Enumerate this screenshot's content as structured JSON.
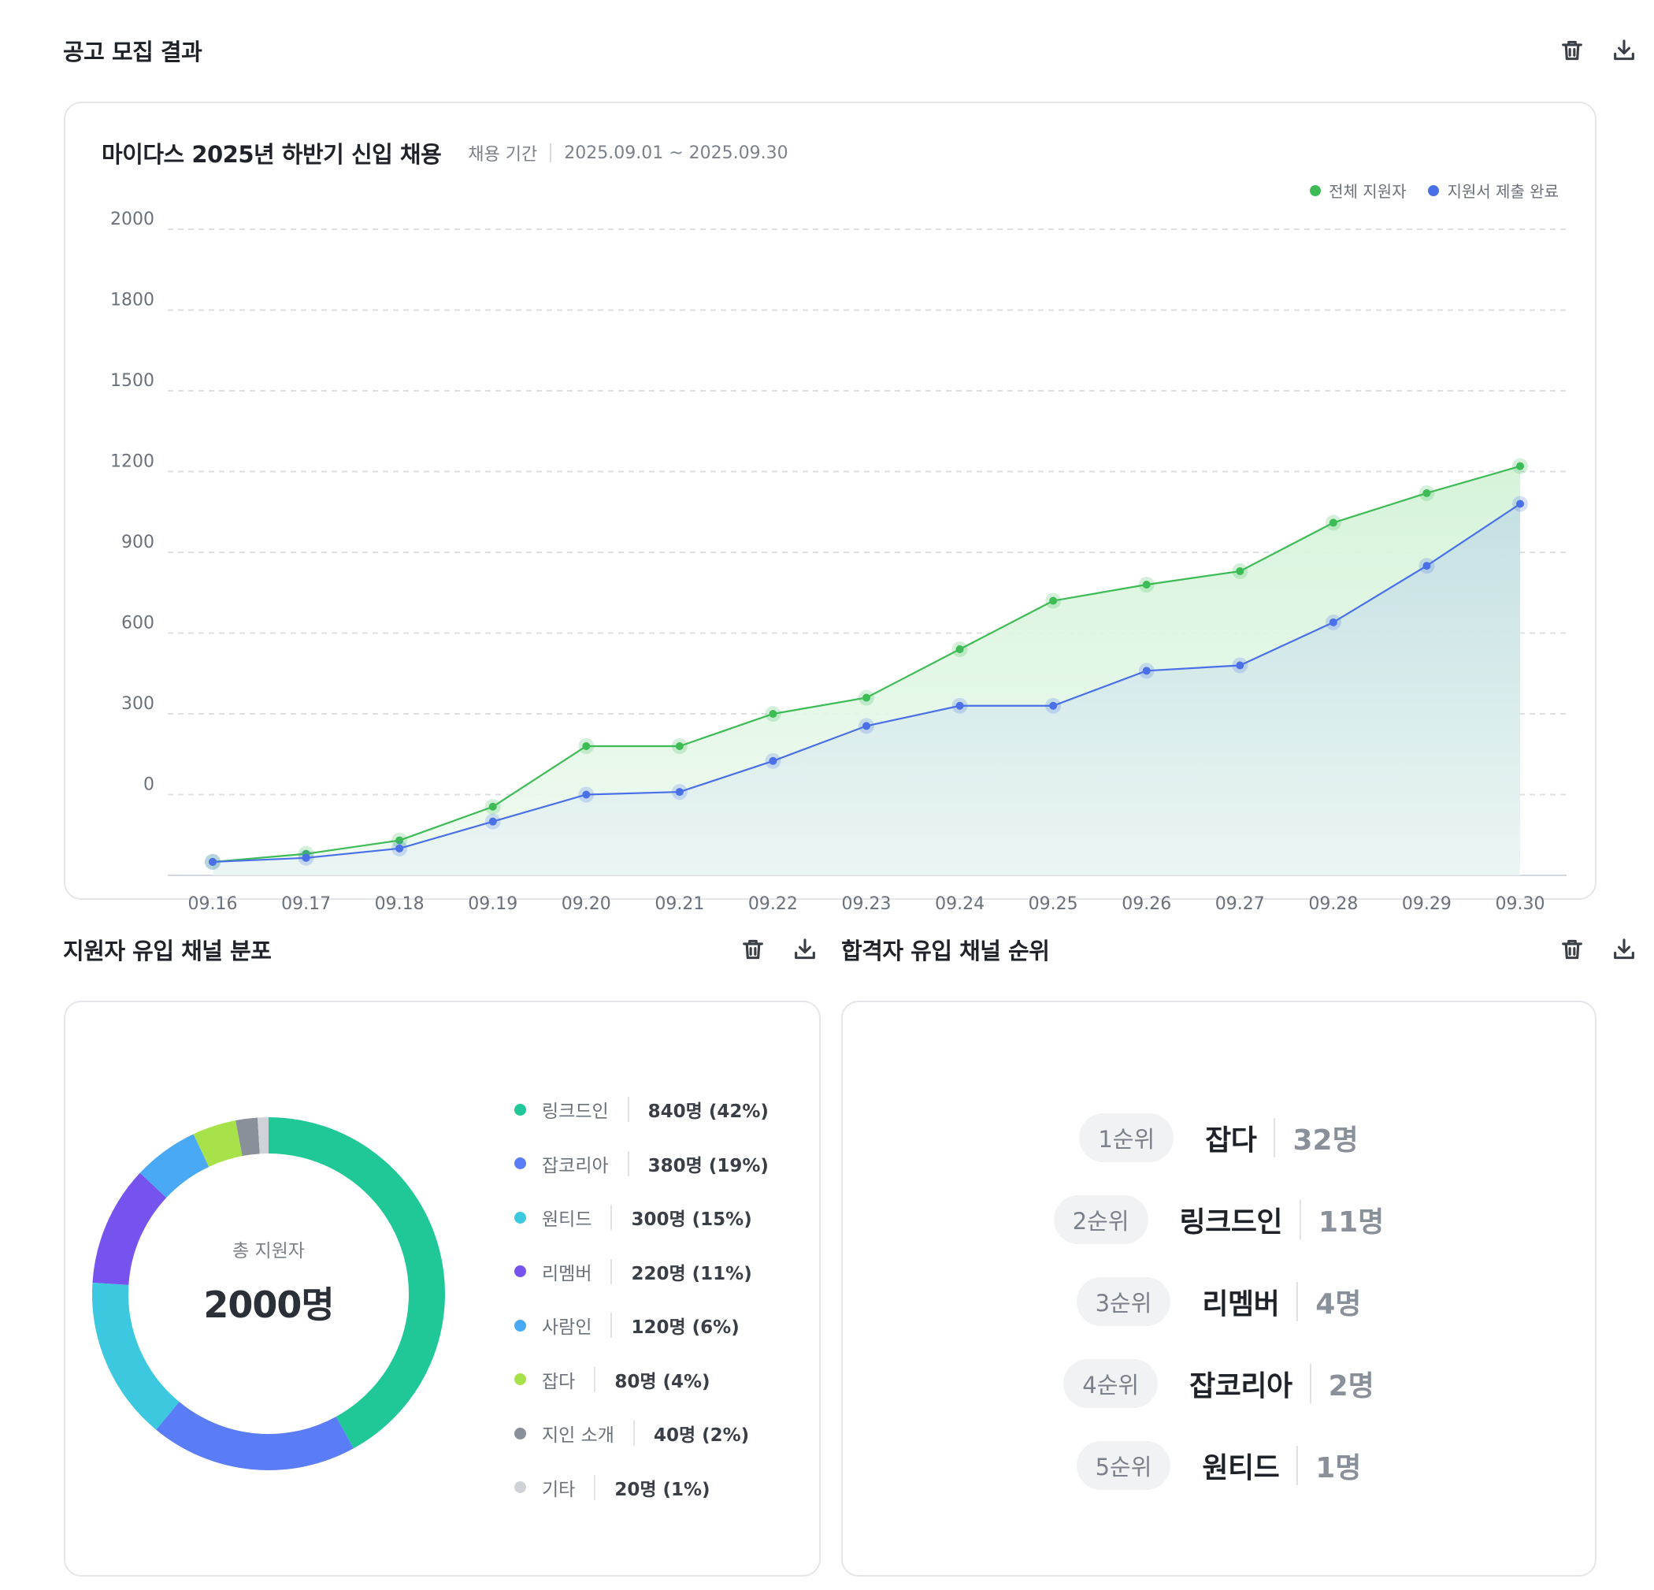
{
  "recruit_result": {
    "title": "공고 모집 결과",
    "chart": {
      "title": "마이다스 2025년 하반기 신입 채용",
      "period_label": "채용 기간",
      "period_value": "2025.09.01 ~ 2025.09.30"
    }
  },
  "channel_distribution": {
    "title": "지원자 유입 채널 분포",
    "total_label": "총 지원자",
    "total_value": "2000명",
    "channels": [
      {
        "name": "링크드인",
        "value_label": "840명 (42%)",
        "percent": 42,
        "color": "#1fc896"
      },
      {
        "name": "잡코리아",
        "value_label": "380명 (19%)",
        "percent": 19,
        "color": "#5b7cf7"
      },
      {
        "name": "원티드",
        "value_label": "300명 (15%)",
        "percent": 15,
        "color": "#3cc8de"
      },
      {
        "name": "리멤버",
        "value_label": "220명 (11%)",
        "percent": 11,
        "color": "#7652ef"
      },
      {
        "name": "사람인",
        "value_label": "120명 (6%)",
        "percent": 6,
        "color": "#4aa9f5"
      },
      {
        "name": "잡다",
        "value_label": "80명 (4%)",
        "percent": 4,
        "color": "#a8e24a"
      },
      {
        "name": "지인 소개",
        "value_label": "40명 (2%)",
        "percent": 2,
        "color": "#8a9099"
      },
      {
        "name": "기타",
        "value_label": "20명 (1%)",
        "percent": 1,
        "color": "#cfd3d8"
      }
    ]
  },
  "passer_ranking": {
    "title": "합격자 유입 채널 순위",
    "items": [
      {
        "rank": "1순위",
        "name": "잡다",
        "count": "32명"
      },
      {
        "rank": "2순위",
        "name": "링크드인",
        "count": "11명"
      },
      {
        "rank": "3순위",
        "name": "리멤버",
        "count": "4명"
      },
      {
        "rank": "4순위",
        "name": "잡코리아",
        "count": "2명"
      },
      {
        "rank": "5순위",
        "name": "원티드",
        "count": "1명"
      }
    ]
  },
  "chart_data": {
    "type": "area",
    "title": "마이다스 2025년 하반기 신입 채용",
    "categories": [
      "09.16",
      "09.17",
      "09.18",
      "09.19",
      "09.20",
      "09.21",
      "09.22",
      "09.23",
      "09.24",
      "09.25",
      "09.26",
      "09.27",
      "09.28",
      "09.29",
      "09.30"
    ],
    "y_ticks": [
      "2000",
      "1800",
      "1500",
      "1200",
      "900",
      "600",
      "300",
      "0"
    ],
    "series": [
      {
        "name": "전체 지원자",
        "color": "#3dbb55",
        "values": [
          -250,
          -220,
          -170,
          -45,
          180,
          180,
          300,
          360,
          540,
          720,
          780,
          830,
          1010,
          1120,
          1220
        ]
      },
      {
        "name": "지원서 제출 완료",
        "color": "#4a70e8",
        "values": [
          -250,
          -235,
          -200,
          -100,
          0,
          10,
          125,
          255,
          330,
          330,
          460,
          480,
          640,
          850,
          1080
        ]
      }
    ],
    "legend": "top-right",
    "grid": true
  }
}
